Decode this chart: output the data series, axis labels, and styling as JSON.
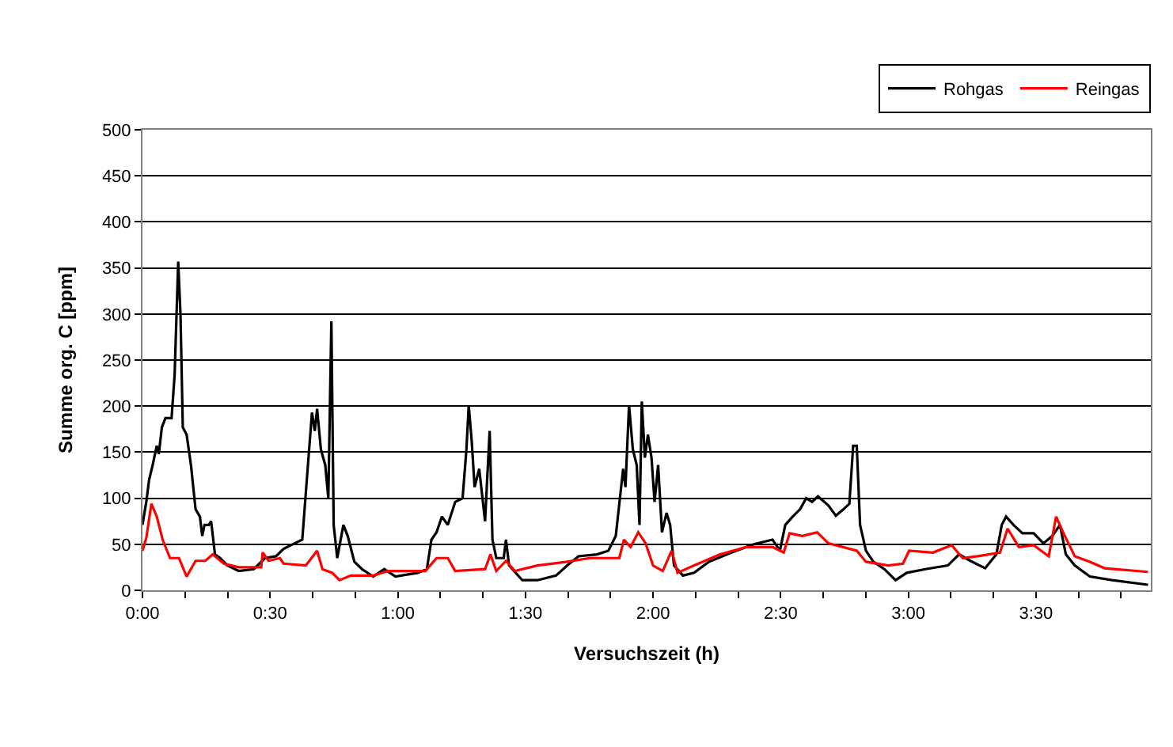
{
  "chart_data": {
    "type": "line",
    "xlabel": "Versuchszeit (h)",
    "ylabel": "Summe org. C [ppm]",
    "xlim": [
      0,
      3.95
    ],
    "xticks": [
      {
        "value": 0,
        "label": "0:00"
      },
      {
        "value": 0.1667,
        "label": null
      },
      {
        "value": 0.3333,
        "label": null
      },
      {
        "value": 0.5,
        "label": "0:30"
      },
      {
        "value": 0.6667,
        "label": null
      },
      {
        "value": 0.8333,
        "label": null
      },
      {
        "value": 1,
        "label": "1:00"
      },
      {
        "value": 1.1667,
        "label": null
      },
      {
        "value": 1.3333,
        "label": null
      },
      {
        "value": 1.5,
        "label": "1:30"
      },
      {
        "value": 1.6667,
        "label": null
      },
      {
        "value": 1.8333,
        "label": null
      },
      {
        "value": 2,
        "label": "2:00"
      },
      {
        "value": 2.1667,
        "label": null
      },
      {
        "value": 2.3333,
        "label": null
      },
      {
        "value": 2.5,
        "label": "2:30"
      },
      {
        "value": 2.6667,
        "label": null
      },
      {
        "value": 2.8333,
        "label": null
      },
      {
        "value": 3,
        "label": "3:00"
      },
      {
        "value": 3.1667,
        "label": null
      },
      {
        "value": 3.3333,
        "label": null
      },
      {
        "value": 3.5,
        "label": "3:30"
      },
      {
        "value": 3.6667,
        "label": null
      },
      {
        "value": 3.8333,
        "label": null
      }
    ],
    "ylim": [
      0,
      500
    ],
    "yticks": [
      0,
      50,
      100,
      150,
      200,
      250,
      300,
      350,
      400,
      450,
      500
    ],
    "grid": "y",
    "legend": "top right",
    "marker": "none",
    "line_style": "solid",
    "series": [
      {
        "name": "Rohgas",
        "color": "#000000",
        "x": [
          0,
          0.015,
          0.026,
          0.04,
          0.056,
          0.064,
          0.076,
          0.09,
          0.114,
          0.126,
          0.14,
          0.149,
          0.158,
          0.173,
          0.19,
          0.208,
          0.225,
          0.234,
          0.243,
          0.26,
          0.269,
          0.284,
          0.304,
          0.333,
          0.377,
          0.436,
          0.48,
          0.523,
          0.553,
          0.596,
          0.626,
          0.646,
          0.664,
          0.675,
          0.684,
          0.699,
          0.716,
          0.728,
          0.74,
          0.749,
          0.763,
          0.787,
          0.804,
          0.83,
          0.86,
          0.904,
          0.947,
          0.991,
          1.079,
          1.114,
          1.132,
          1.152,
          1.173,
          1.196,
          1.225,
          1.254,
          1.269,
          1.278,
          1.29,
          1.301,
          1.319,
          1.342,
          1.36,
          1.371,
          1.386,
          1.415,
          1.424,
          1.436,
          1.488,
          1.547,
          1.62,
          1.664,
          1.708,
          1.781,
          1.825,
          1.854,
          1.883,
          1.892,
          1.906,
          1.921,
          1.936,
          1.947,
          1.956,
          1.968,
          1.98,
          1.994,
          2.006,
          2.02,
          2.035,
          2.053,
          2.067,
          2.082,
          2.117,
          2.161,
          2.219,
          2.307,
          2.395,
          2.468,
          2.497,
          2.518,
          2.547,
          2.576,
          2.6,
          2.623,
          2.646,
          2.687,
          2.716,
          2.746,
          2.769,
          2.784,
          2.798,
          2.811,
          2.834,
          2.863,
          2.906,
          2.95,
          2.994,
          3.067,
          3.155,
          3.199,
          3.243,
          3.301,
          3.345,
          3.366,
          3.383,
          3.412,
          3.447,
          3.491,
          3.529,
          3.564,
          3.594,
          3.617,
          3.652,
          3.711,
          3.798,
          3.939
        ],
        "values": [
          71,
          96,
          120,
          136,
          157,
          148,
          177,
          187,
          187,
          234,
          357,
          299,
          177,
          169,
          136,
          88,
          80,
          59,
          71,
          71,
          75,
          39,
          35,
          27,
          21,
          23,
          35,
          37,
          45,
          51,
          55,
          128,
          193,
          173,
          197,
          153,
          136,
          100,
          292,
          71,
          35,
          71,
          59,
          31,
          23,
          15,
          23,
          15,
          19,
          23,
          55,
          63,
          80,
          71,
          96,
          100,
          153,
          201,
          161,
          112,
          132,
          75,
          173,
          55,
          35,
          35,
          55,
          27,
          11,
          11,
          16,
          27,
          37,
          39,
          43,
          59,
          132,
          112,
          201,
          153,
          136,
          71,
          205,
          144,
          169,
          144,
          96,
          136,
          63,
          84,
          71,
          27,
          16,
          19,
          31,
          41,
          50,
          55,
          43,
          71,
          80,
          88,
          100,
          96,
          102,
          92,
          81,
          88,
          94,
          157,
          157,
          71,
          43,
          31,
          23,
          11,
          19,
          23,
          27,
          39,
          32,
          24,
          39,
          71,
          80,
          71,
          62,
          62,
          51,
          59,
          71,
          39,
          27,
          15,
          11,
          6
        ]
      },
      {
        "name": "Reingas",
        "color": "#ff0000",
        "x": [
          0,
          0.015,
          0.035,
          0.056,
          0.079,
          0.108,
          0.143,
          0.173,
          0.208,
          0.246,
          0.275,
          0.319,
          0.377,
          0.465,
          0.471,
          0.494,
          0.538,
          0.553,
          0.64,
          0.684,
          0.705,
          0.743,
          0.772,
          0.816,
          0.904,
          0.962,
          1.108,
          1.152,
          1.196,
          1.225,
          1.342,
          1.363,
          1.386,
          1.424,
          1.459,
          1.547,
          1.664,
          1.752,
          1.868,
          1.886,
          1.912,
          1.942,
          1.971,
          2.0,
          2.038,
          2.073,
          2.096,
          2.161,
          2.263,
          2.365,
          2.468,
          2.512,
          2.535,
          2.585,
          2.643,
          2.687,
          2.798,
          2.834,
          2.921,
          2.979,
          3.003,
          3.096,
          3.17,
          3.213,
          3.272,
          3.359,
          3.389,
          3.433,
          3.491,
          3.55,
          3.579,
          3.608,
          3.652,
          3.711,
          3.769,
          3.939
        ],
        "values": [
          43,
          57,
          94,
          80,
          55,
          35,
          35,
          15,
          32,
          32,
          39,
          29,
          25,
          25,
          41,
          32,
          35,
          29,
          27,
          43,
          23,
          19,
          11,
          16,
          16,
          21,
          21,
          35,
          35,
          21,
          23,
          39,
          21,
          32,
          21,
          27,
          31,
          35,
          35,
          55,
          47,
          63,
          51,
          27,
          21,
          43,
          19,
          27,
          39,
          47,
          47,
          41,
          62,
          59,
          63,
          51,
          43,
          31,
          27,
          29,
          43,
          41,
          49,
          35,
          37,
          41,
          67,
          47,
          49,
          37,
          80,
          62,
          37,
          31,
          24,
          20
        ]
      }
    ]
  }
}
